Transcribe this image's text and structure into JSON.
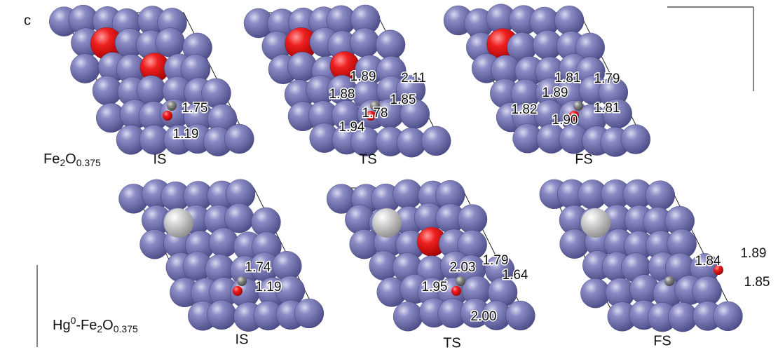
{
  "panel_label": "c",
  "rows": [
    {
      "label": [
        "Fe",
        "2",
        "O",
        "0.375"
      ],
      "states": [
        {
          "name": "IS",
          "distances": [
            "1.75",
            "1.19"
          ]
        },
        {
          "name": "TS",
          "distances": [
            "1.89",
            "2.11",
            "1.88",
            "1.85",
            "1.78",
            "1.94"
          ]
        },
        {
          "name": "FS",
          "distances": [
            "1.81",
            "1.79",
            "1.89",
            "1.82",
            "1.81",
            "1.90"
          ]
        }
      ]
    },
    {
      "label": [
        "Hg",
        "0",
        "-Fe",
        "2",
        "O",
        "0.375"
      ],
      "states": [
        {
          "name": "IS",
          "distances": [
            "1.74",
            "1.19"
          ]
        },
        {
          "name": "TS",
          "distances": [
            "2.03",
            "1.79",
            "1.64",
            "1.95",
            "2.00"
          ]
        },
        {
          "name": "FS",
          "distances": [
            "1.89",
            "1.84",
            "1.85"
          ]
        }
      ]
    }
  ]
}
